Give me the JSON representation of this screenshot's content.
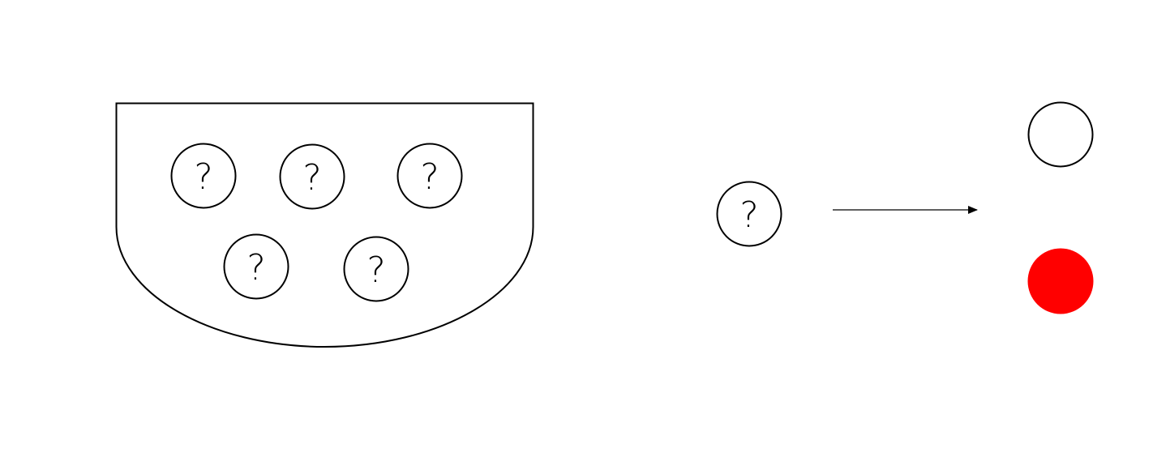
{
  "colors": {
    "background": "#ffffff",
    "stroke": "#000000",
    "outcome_filled": "#ff0000",
    "outcome_empty": "#ffffff"
  },
  "bowl": {
    "balls": [
      {
        "label": "?"
      },
      {
        "label": "?"
      },
      {
        "label": "?"
      },
      {
        "label": "?"
      },
      {
        "label": "?"
      }
    ]
  },
  "drawn_ball": {
    "label": "?"
  },
  "outcomes": [
    {
      "color": "#ffffff",
      "outlined": true
    },
    {
      "color": "#ff0000",
      "outlined": false
    }
  ]
}
